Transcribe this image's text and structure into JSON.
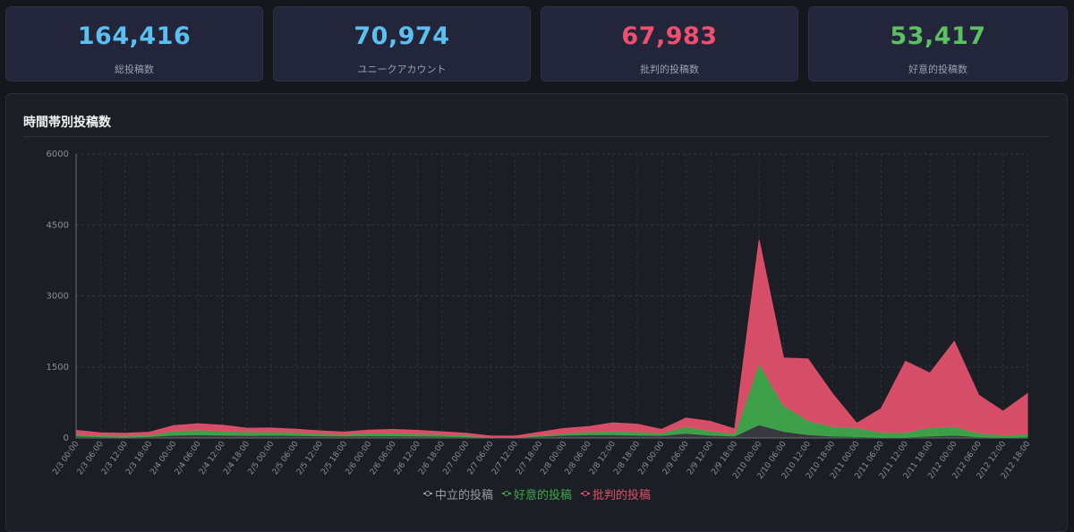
{
  "stats": [
    {
      "value": "164,416",
      "label": "総投稿数",
      "color": "#5bc0f0"
    },
    {
      "value": "70,974",
      "label": "ユニークアカウント",
      "color": "#5bc0f0"
    },
    {
      "value": "67,983",
      "label": "批判的投稿数",
      "color": "#ef5070"
    },
    {
      "value": "53,417",
      "label": "好意的投稿数",
      "color": "#5cc062"
    }
  ],
  "panel": {
    "title": "時間帯別投稿数"
  },
  "colors": {
    "neutral": "#3a3b40",
    "positive": "#3fa84a",
    "negative": "#e0506a",
    "neutral_legend": "#9a9aa0"
  },
  "chart_data": {
    "type": "area",
    "stacked": true,
    "ylim": [
      0,
      6000
    ],
    "yticks": [
      0,
      1500,
      3000,
      4500,
      6000
    ],
    "x_range": [
      "2/3 00:00",
      "2/12 23:00"
    ],
    "x_step_hours": 6,
    "xtick_labels": [
      "2/3 00:00",
      "2/3 06:00",
      "2/3 12:00",
      "2/3 18:00",
      "2/4 00:00",
      "2/4 06:00",
      "2/4 12:00",
      "2/4 18:00",
      "2/5 00:00",
      "2/5 06:00",
      "2/5 12:00",
      "2/5 18:00",
      "2/6 00:00",
      "2/6 06:00",
      "2/6 12:00",
      "2/6 18:00",
      "2/7 00:00",
      "2/7 06:00",
      "2/7 12:00",
      "2/7 18:00",
      "2/8 00:00",
      "2/8 06:00",
      "2/8 12:00",
      "2/8 18:00",
      "2/9 00:00",
      "2/9 06:00",
      "2/9 12:00",
      "2/9 18:00",
      "2/10 00:00",
      "2/10 06:00",
      "2/10 12:00",
      "2/10 18:00",
      "2/11 00:00",
      "2/11 06:00",
      "2/11 12:00",
      "2/11 18:00",
      "2/12 00:00",
      "2/12 06:00",
      "2/12 12:00",
      "2/12 18:00"
    ],
    "grid": true,
    "legend_position": "bottom",
    "series": [
      {
        "name": "中立的投稿",
        "key": "neutral",
        "values": [
          40,
          25,
          20,
          30,
          60,
          70,
          60,
          55,
          60,
          55,
          45,
          40,
          45,
          45,
          40,
          35,
          25,
          15,
          15,
          35,
          60,
          70,
          70,
          60,
          55,
          100,
          60,
          40,
          280,
          140,
          70,
          40,
          30,
          20,
          20,
          40,
          60,
          25,
          15,
          25
        ]
      },
      {
        "name": "好意的投稿",
        "key": "positive",
        "values": [
          40,
          25,
          20,
          30,
          90,
          100,
          90,
          70,
          70,
          60,
          45,
          35,
          60,
          60,
          50,
          40,
          25,
          5,
          5,
          20,
          40,
          60,
          70,
          70,
          50,
          140,
          90,
          50,
          1300,
          550,
          300,
          200,
          180,
          100,
          100,
          180,
          180,
          80,
          50,
          60
        ]
      },
      {
        "name": "批判的投稿",
        "key": "negative",
        "values": [
          80,
          60,
          60,
          60,
          110,
          130,
          120,
          80,
          80,
          70,
          60,
          50,
          60,
          75,
          70,
          55,
          50,
          20,
          20,
          65,
          100,
          110,
          180,
          160,
          75,
          180,
          200,
          100,
          2600,
          1000,
          1300,
          700,
          100,
          500,
          1500,
          1150,
          1800,
          800,
          500,
          850
        ]
      }
    ],
    "note_series_sampled_every": "6h"
  },
  "legend": [
    {
      "label": "中立的投稿",
      "key": "neutral"
    },
    {
      "label": "好意的投稿",
      "key": "positive"
    },
    {
      "label": "批判的投稿",
      "key": "negative"
    }
  ]
}
